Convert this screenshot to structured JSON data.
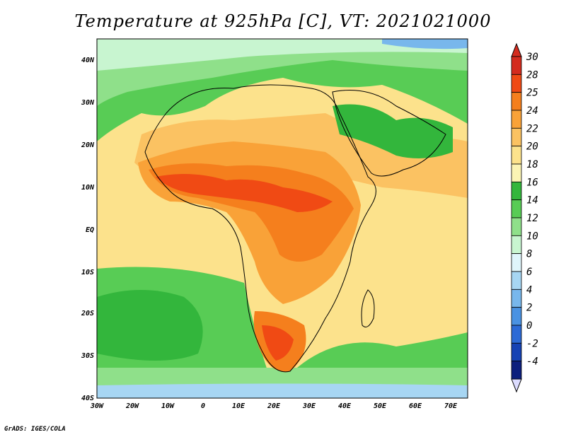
{
  "title": "Temperature at 925hPa [C], VT: 2021021000",
  "credit": "GrADS: IGES/COLA",
  "lat_labels": [
    "40N",
    "30N",
    "20N",
    "10N",
    "EQ",
    "10S",
    "20S",
    "30S",
    "40S"
  ],
  "lon_labels": [
    "30W",
    "20W",
    "10W",
    "0",
    "10E",
    "20E",
    "30E",
    "40E",
    "50E",
    "60E",
    "70E"
  ],
  "colorbar": {
    "levels": [
      "30",
      "28",
      "25",
      "24",
      "22",
      "20",
      "18",
      "16",
      "14",
      "12",
      "10",
      "8",
      "6",
      "4",
      "2",
      "0",
      "-2",
      "-4"
    ],
    "colors": [
      "#d42b1e",
      "#f04a14",
      "#f57f1d",
      "#f9a238",
      "#fbc262",
      "#fce28c",
      "#fbf4b4",
      "#33b63c",
      "#58cc55",
      "#8fe08a",
      "#c8f5d0",
      "#dff5fb",
      "#a7d6f3",
      "#78b7ec",
      "#4a92e2",
      "#2c6ad6",
      "#1542b4",
      "#0c1f7d"
    ]
  },
  "chart_data": {
    "type": "heatmap",
    "variable": "Temperature at 925hPa",
    "units": "C",
    "valid_time": "2021021000",
    "lon_range": [
      -30,
      75
    ],
    "lat_range": [
      -40,
      45
    ],
    "contour_levels": [
      -4,
      -2,
      0,
      2,
      4,
      6,
      8,
      10,
      12,
      14,
      16,
      18,
      20,
      22,
      24,
      25,
      28,
      30
    ]
  }
}
